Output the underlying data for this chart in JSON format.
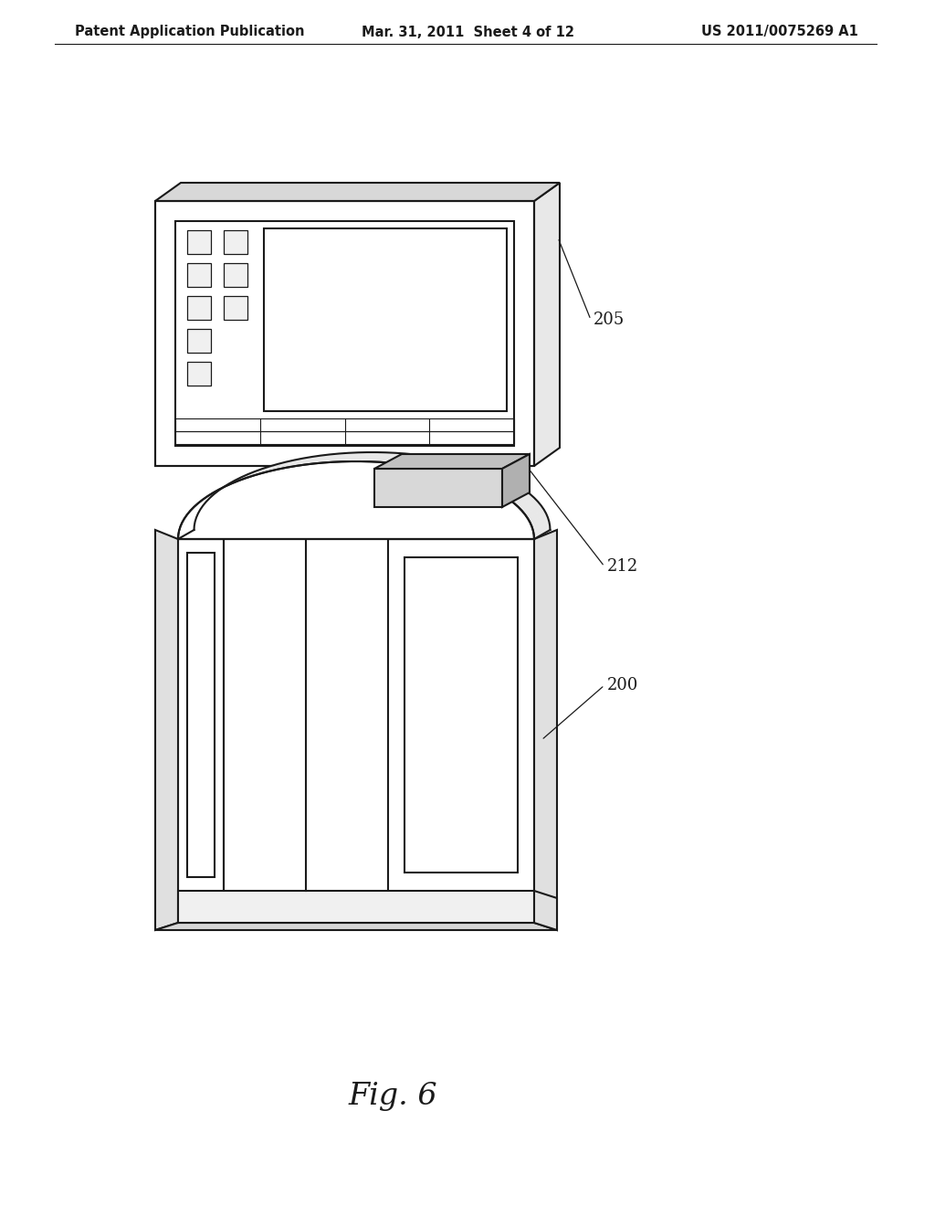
{
  "background_color": "#ffffff",
  "header_left": "Patent Application Publication",
  "header_center": "Mar. 31, 2011  Sheet 4 of 12",
  "header_right": "US 2011/0075269 A1",
  "header_fontsize": 10.5,
  "fig_caption": "Fig. 6",
  "fig_caption_fontsize": 24,
  "label_205": "205",
  "label_212": "212",
  "label_200": "200",
  "label_fontsize": 13,
  "line_color": "#1a1a1a",
  "lw": 1.5
}
